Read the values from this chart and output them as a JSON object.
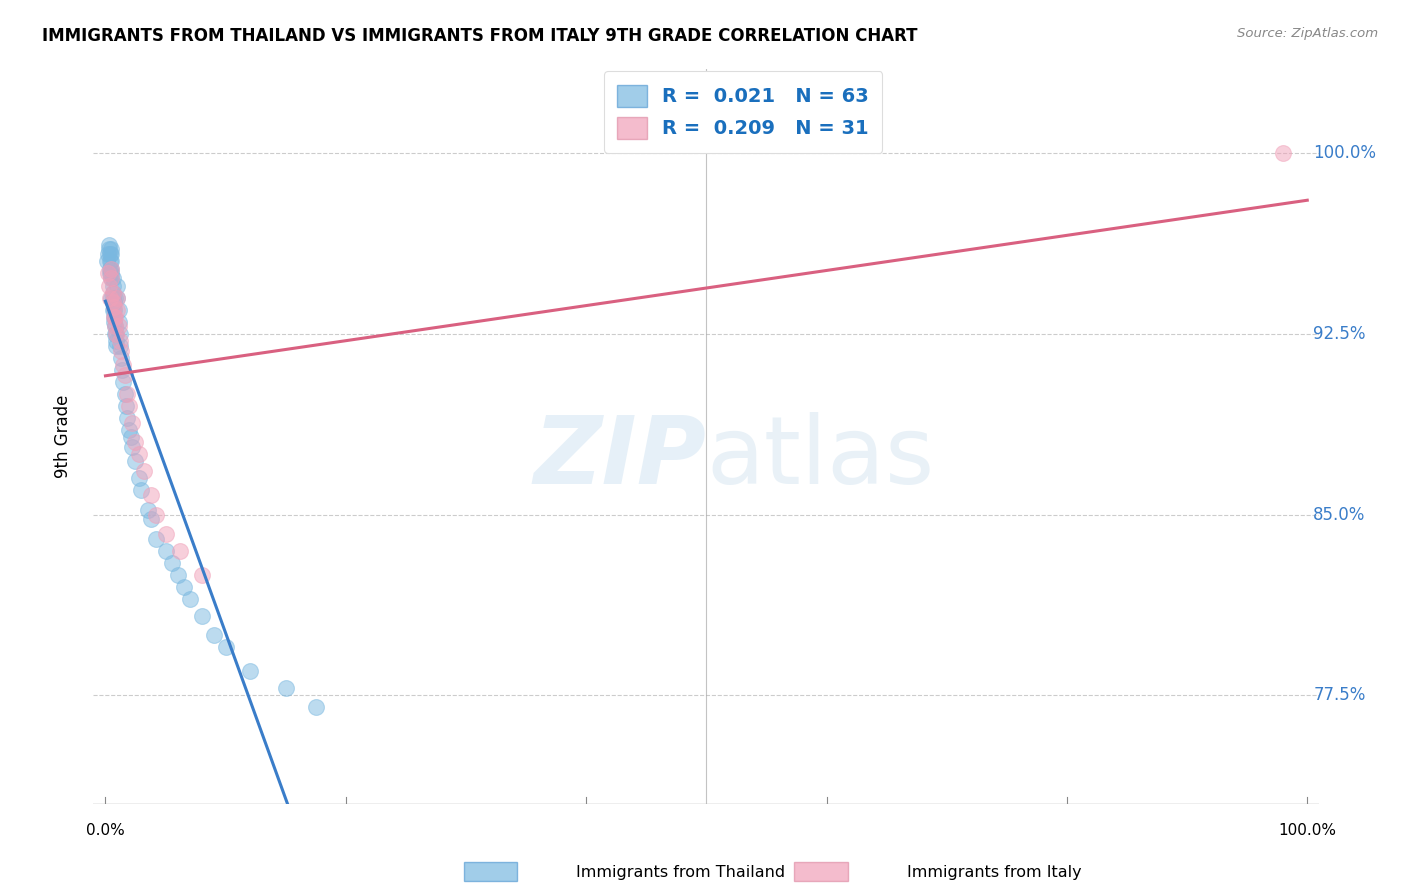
{
  "title": "IMMIGRANTS FROM THAILAND VS IMMIGRANTS FROM ITALY 9TH GRADE CORRELATION CHART",
  "source": "Source: ZipAtlas.com",
  "ylabel": "9th Grade",
  "thailand_color": "#7ab8e0",
  "italy_color": "#f0a0b8",
  "thailand_line_color": "#3a7dc9",
  "italy_line_color": "#d96080",
  "thailand_R": 0.021,
  "thailand_N": 63,
  "italy_R": 0.209,
  "italy_N": 31,
  "legend_R_color": "#1a6fbd",
  "legend_label_thailand": "Immigrants from Thailand",
  "legend_label_italy": "Immigrants from Italy",
  "xlim": [
    -0.01,
    1.01
  ],
  "ylim": [
    0.73,
    1.035
  ],
  "yticks": [
    0.775,
    0.85,
    0.925,
    1.0
  ],
  "ytick_labels": [
    "77.5%",
    "85.0%",
    "92.5%",
    "100.0%"
  ],
  "thailand_x": [
    0.001,
    0.002,
    0.003,
    0.003,
    0.004,
    0.004,
    0.004,
    0.004,
    0.005,
    0.005,
    0.005,
    0.005,
    0.005,
    0.005,
    0.005,
    0.006,
    0.006,
    0.006,
    0.006,
    0.006,
    0.006,
    0.007,
    0.007,
    0.007,
    0.007,
    0.008,
    0.008,
    0.008,
    0.009,
    0.009,
    0.009,
    0.01,
    0.01,
    0.011,
    0.011,
    0.012,
    0.012,
    0.013,
    0.014,
    0.015,
    0.016,
    0.017,
    0.018,
    0.02,
    0.021,
    0.022,
    0.025,
    0.028,
    0.03,
    0.035,
    0.038,
    0.042,
    0.05,
    0.055,
    0.06,
    0.065,
    0.07,
    0.08,
    0.09,
    0.1,
    0.12,
    0.15,
    0.175
  ],
  "thailand_y": [
    0.955,
    0.958,
    0.96,
    0.962,
    0.95,
    0.952,
    0.955,
    0.958,
    0.948,
    0.95,
    0.952,
    0.955,
    0.958,
    0.94,
    0.96,
    0.935,
    0.938,
    0.94,
    0.942,
    0.945,
    0.948,
    0.93,
    0.932,
    0.935,
    0.938,
    0.925,
    0.928,
    0.94,
    0.92,
    0.922,
    0.925,
    0.94,
    0.945,
    0.93,
    0.935,
    0.92,
    0.925,
    0.915,
    0.91,
    0.905,
    0.9,
    0.895,
    0.89,
    0.885,
    0.882,
    0.878,
    0.872,
    0.865,
    0.86,
    0.852,
    0.848,
    0.84,
    0.835,
    0.83,
    0.825,
    0.82,
    0.815,
    0.808,
    0.8,
    0.795,
    0.785,
    0.778,
    0.77
  ],
  "italy_x": [
    0.002,
    0.003,
    0.004,
    0.005,
    0.005,
    0.006,
    0.006,
    0.007,
    0.007,
    0.008,
    0.008,
    0.009,
    0.01,
    0.01,
    0.011,
    0.012,
    0.013,
    0.015,
    0.016,
    0.018,
    0.02,
    0.022,
    0.025,
    0.028,
    0.032,
    0.038,
    0.042,
    0.05,
    0.062,
    0.08,
    0.98
  ],
  "italy_y": [
    0.95,
    0.945,
    0.94,
    0.948,
    0.952,
    0.938,
    0.942,
    0.932,
    0.936,
    0.928,
    0.932,
    0.925,
    0.935,
    0.94,
    0.928,
    0.922,
    0.918,
    0.912,
    0.908,
    0.9,
    0.895,
    0.888,
    0.88,
    0.875,
    0.868,
    0.858,
    0.85,
    0.842,
    0.835,
    0.825,
    1.0
  ],
  "watermark_zip": "ZIP",
  "watermark_atlas": "atlas",
  "background_color": "#ffffff",
  "grid_color": "#cccccc",
  "line_split_x": 0.21
}
